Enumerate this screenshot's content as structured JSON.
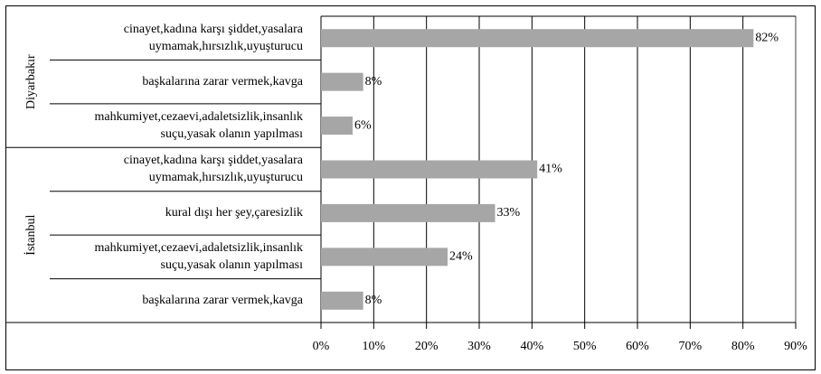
{
  "chart_data": {
    "type": "bar",
    "orientation": "horizontal",
    "color": "#a6a6a6",
    "grid": true,
    "xlim": [
      0,
      90
    ],
    "xticks": [
      {
        "value": 0,
        "label": "0%"
      },
      {
        "value": 10,
        "label": "10%"
      },
      {
        "value": 20,
        "label": "20%"
      },
      {
        "value": 30,
        "label": "30%"
      },
      {
        "value": 40,
        "label": "40%"
      },
      {
        "value": 50,
        "label": "50%"
      },
      {
        "value": 60,
        "label": "60%"
      },
      {
        "value": 70,
        "label": "70%"
      },
      {
        "value": 80,
        "label": "80%"
      },
      {
        "value": 90,
        "label": "90%"
      }
    ],
    "groups": [
      {
        "name": "Diyarbakır",
        "categories": [
          [
            "cinayet,kadına karşı şiddet,yasalara",
            "uymamak,hırsızlık,uyuşturucu"
          ],
          [
            "başkalarına zarar vermek,kavga"
          ],
          [
            "mahkumiyet,cezaevi,adaletsizlik,insanlık",
            "suçu,yasak olanın yapılması"
          ]
        ],
        "values": [
          82,
          8,
          6
        ],
        "value_labels": [
          "82%",
          "8%",
          "6%"
        ]
      },
      {
        "name": "İstanbul",
        "categories": [
          [
            "cinayet,kadına karşı şiddet,yasalara",
            "uymamak,hırsızlık,uyuşturucu"
          ],
          [
            "kural dışı her şey,çaresizlik"
          ],
          [
            "mahkumiyet,cezaevi,adaletsizlik,insanlık",
            "suçu,yasak olanın yapılması"
          ],
          [
            "başkalarına zarar vermek,kavga"
          ]
        ],
        "values": [
          41,
          33,
          24,
          8
        ],
        "value_labels": [
          "41%",
          "33%",
          "24%",
          "8%"
        ]
      }
    ]
  }
}
